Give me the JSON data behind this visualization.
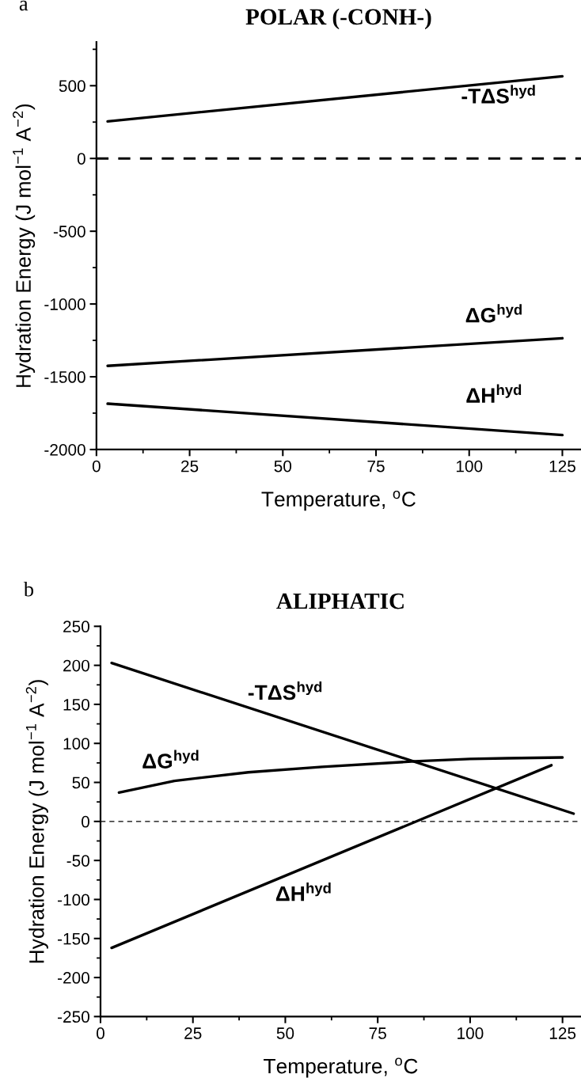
{
  "chart_data": [
    {
      "type": "line",
      "title": "POLAR (-CONH-)",
      "xlabel": "Temperature, $^{o}$C",
      "ylabel": "Hydration Energy (J mol$^{−1}$ A$^{−2}$)",
      "xlim": [
        0,
        130
      ],
      "ylim": [
        -2000,
        800
      ],
      "xticks": [
        0,
        {
          "value": 12.5,
          "label": null
        },
        25,
        {
          "value": 37.5,
          "label": null
        },
        50,
        {
          "value": 62.5,
          "label": null
        },
        75,
        {
          "value": 87.5,
          "label": null
        },
        100,
        {
          "value": 112.5,
          "label": null
        },
        125
      ],
      "yticks": [
        -2000,
        {
          "value": -1750,
          "label": null
        },
        -1500,
        {
          "value": -1250,
          "label": null
        },
        -1000,
        {
          "value": -750,
          "label": null
        },
        -500,
        {
          "value": -250,
          "label": null
        },
        0,
        {
          "value": 250,
          "label": null
        },
        500,
        {
          "value": 750,
          "label": null
        }
      ],
      "series": [
        {
          "name": "-TΔS$^{hyd}$",
          "color": "#000000",
          "x": [
            3,
            125
          ],
          "values": [
            255,
            565
          ]
        },
        {
          "name": "ΔG$^{hyd}$",
          "color": "#000000",
          "x": [
            3,
            125
          ],
          "values": [
            -1425,
            -1235
          ]
        },
        {
          "name": "ΔH$^{hyd}$",
          "color": "#000000",
          "x": [
            3,
            125
          ],
          "values": [
            -1685,
            -1900
          ]
        }
      ],
      "ref_lines": [
        {
          "axis": "y",
          "value": 0,
          "label": null,
          "color": "#000000",
          "line_style": "dashed"
        }
      ],
      "line_style": "solid",
      "marker": "none",
      "grid": false,
      "legend": false,
      "annotations": [
        "a"
      ]
    },
    {
      "type": "line",
      "title": "ALIPHATIC",
      "xlabel": "Temperature, $^{o}$C",
      "ylabel": "Hydration Energy (J mol$^{−1}$ A$^{−2}$)",
      "xlim": [
        0,
        130
      ],
      "ylim": [
        -250,
        250
      ],
      "xticks": [
        0,
        {
          "value": 12.5,
          "label": null
        },
        25,
        {
          "value": 37.5,
          "label": null
        },
        50,
        {
          "value": 62.5,
          "label": null
        },
        75,
        {
          "value": 87.5,
          "label": null
        },
        100,
        {
          "value": 112.5,
          "label": null
        },
        125
      ],
      "yticks": [
        -250,
        {
          "value": -225,
          "label": null
        },
        -200,
        {
          "value": -175,
          "label": null
        },
        -150,
        {
          "value": -125,
          "label": null
        },
        -100,
        {
          "value": -75,
          "label": null
        },
        -50,
        {
          "value": -25,
          "label": null
        },
        0,
        {
          "value": 25,
          "label": null
        },
        50,
        {
          "value": 75,
          "label": null
        },
        100,
        {
          "value": 125,
          "label": null
        },
        150,
        {
          "value": 175,
          "label": null
        },
        200,
        {
          "value": 225,
          "label": null
        },
        250
      ],
      "series": [
        {
          "name": "-TΔS$^{hyd}$",
          "color": "#000000",
          "x": [
            3,
            128
          ],
          "values": [
            203,
            10
          ]
        },
        {
          "name": "ΔG$^{hyd}$",
          "color": "#000000",
          "x": [
            5,
            20,
            40,
            60,
            85,
            100,
            110,
            125
          ],
          "values": [
            37,
            52,
            63,
            70,
            77,
            80,
            81,
            82
          ]
        },
        {
          "name": "ΔH$^{hyd}$",
          "color": "#000000",
          "x": [
            3,
            122
          ],
          "values": [
            -162,
            72
          ]
        }
      ],
      "ref_lines": [
        {
          "axis": "y",
          "value": 0,
          "label": null,
          "color": "#000000",
          "line_style": "dashed"
        }
      ],
      "line_style": "solid",
      "marker": "none",
      "grid": false,
      "legend": false,
      "annotations": [
        "b"
      ]
    }
  ]
}
